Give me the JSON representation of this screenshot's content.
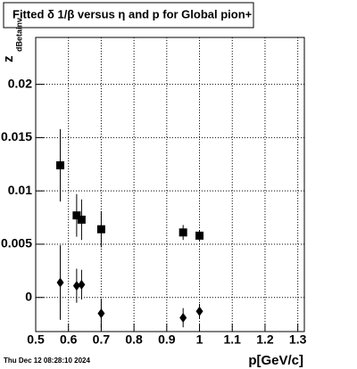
{
  "chart_data": {
    "type": "scatter",
    "title": "Fitted δ 1/β versus η and p for Global pion+",
    "y_label": "z",
    "y_label_sub": "dBetainv",
    "x_label": "p[GeV/c]",
    "footer": "Thu Dec 12 08:28:10 2024",
    "xlim": [
      0.5,
      1.32
    ],
    "xticks": [
      0.5,
      0.6,
      0.7,
      0.8,
      0.9,
      1,
      1.1,
      1.2,
      1.3
    ],
    "ylim": [
      -0.0032,
      0.0244
    ],
    "yticks": [
      0,
      0.005,
      0.01,
      0.015,
      0.02
    ],
    "grid": true,
    "series": [
      {
        "marker": "square",
        "color": "#000000",
        "x": [
          0.575,
          0.625,
          0.64,
          0.7,
          0.95,
          1.0
        ],
        "values": [
          0.0124,
          0.0077,
          0.0073,
          0.0064,
          0.0061,
          0.0058
        ],
        "errors": [
          0.0034,
          0.002,
          0.0019,
          0.0017,
          0.0007,
          0.0005
        ]
      },
      {
        "marker": "diamond",
        "color": "#000000",
        "x": [
          0.575,
          0.625,
          0.64,
          0.7,
          0.95,
          1.0
        ],
        "values": [
          0.0014,
          0.0011,
          0.0012,
          -0.0015,
          -0.0019,
          -0.0013
        ],
        "errors": [
          0.0035,
          0.0016,
          0.0014,
          0.0014,
          0.0009,
          0.0007
        ]
      }
    ]
  }
}
